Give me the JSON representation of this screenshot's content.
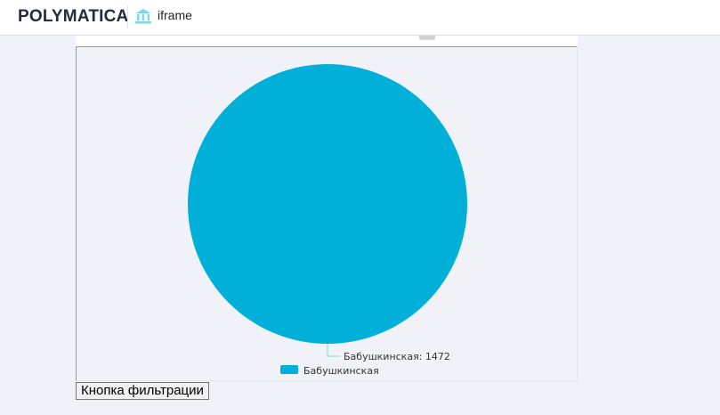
{
  "header": {
    "logo": "POLYMATICA",
    "title": "iframe",
    "icon": "bank-icon"
  },
  "chart_data": {
    "type": "pie",
    "slices": [
      {
        "label": "Бабушкинская",
        "value": 1472,
        "color": "#00b0d8"
      }
    ],
    "data_labels": [
      "Бабушкинская: 1472"
    ],
    "legend": {
      "position": "bottom",
      "entries": [
        "Бабушкинская"
      ]
    }
  },
  "filter_button": {
    "label": "Кнопка фильтрации"
  }
}
